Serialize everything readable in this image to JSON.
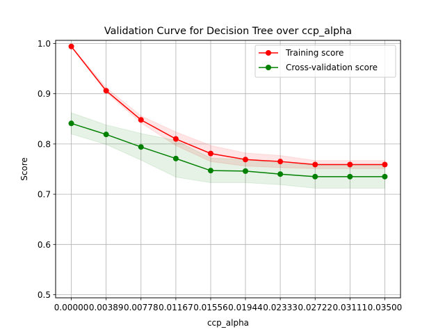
{
  "chart_data": {
    "type": "line",
    "title": "Validation Curve for Decision Tree over ccp_alpha",
    "xlabel": "ccp_alpha",
    "ylabel": "Score",
    "ylim": [
      0.5,
      1.0
    ],
    "grid": true,
    "legend_position": "top-right",
    "x": [
      0.0,
      0.00389,
      0.00778,
      0.01167,
      0.01556,
      0.01944,
      0.02333,
      0.02722,
      0.03111,
      0.035
    ],
    "x_tick_labels": [
      "0.00000",
      "0.00389",
      "0.00778",
      "0.01167",
      "0.01556",
      "0.01944",
      "0.02333",
      "0.02722",
      "0.03111",
      "0.03500"
    ],
    "y_ticks": [
      0.5,
      0.6,
      0.7,
      0.8,
      0.9,
      1.0
    ],
    "y_tick_labels": [
      "0.5",
      "0.6",
      "0.7",
      "0.8",
      "0.9",
      "1.0"
    ],
    "series": [
      {
        "name": "Training score",
        "color": "#ff0000",
        "values": [
          0.994,
          0.906,
          0.848,
          0.81,
          0.781,
          0.769,
          0.765,
          0.759,
          0.759,
          0.759
        ],
        "band_lower": [
          0.993,
          0.903,
          0.842,
          0.797,
          0.765,
          0.756,
          0.753,
          0.751,
          0.751,
          0.751
        ],
        "band_upper": [
          0.995,
          0.912,
          0.856,
          0.824,
          0.797,
          0.782,
          0.777,
          0.767,
          0.767,
          0.767
        ]
      },
      {
        "name": "Cross-validation score",
        "color": "#008000",
        "values": [
          0.841,
          0.819,
          0.794,
          0.771,
          0.747,
          0.746,
          0.74,
          0.735,
          0.735,
          0.735
        ],
        "band_lower": [
          0.82,
          0.799,
          0.768,
          0.734,
          0.723,
          0.723,
          0.719,
          0.712,
          0.712,
          0.712
        ],
        "band_upper": [
          0.862,
          0.838,
          0.821,
          0.807,
          0.772,
          0.769,
          0.762,
          0.758,
          0.758,
          0.758
        ]
      }
    ]
  }
}
